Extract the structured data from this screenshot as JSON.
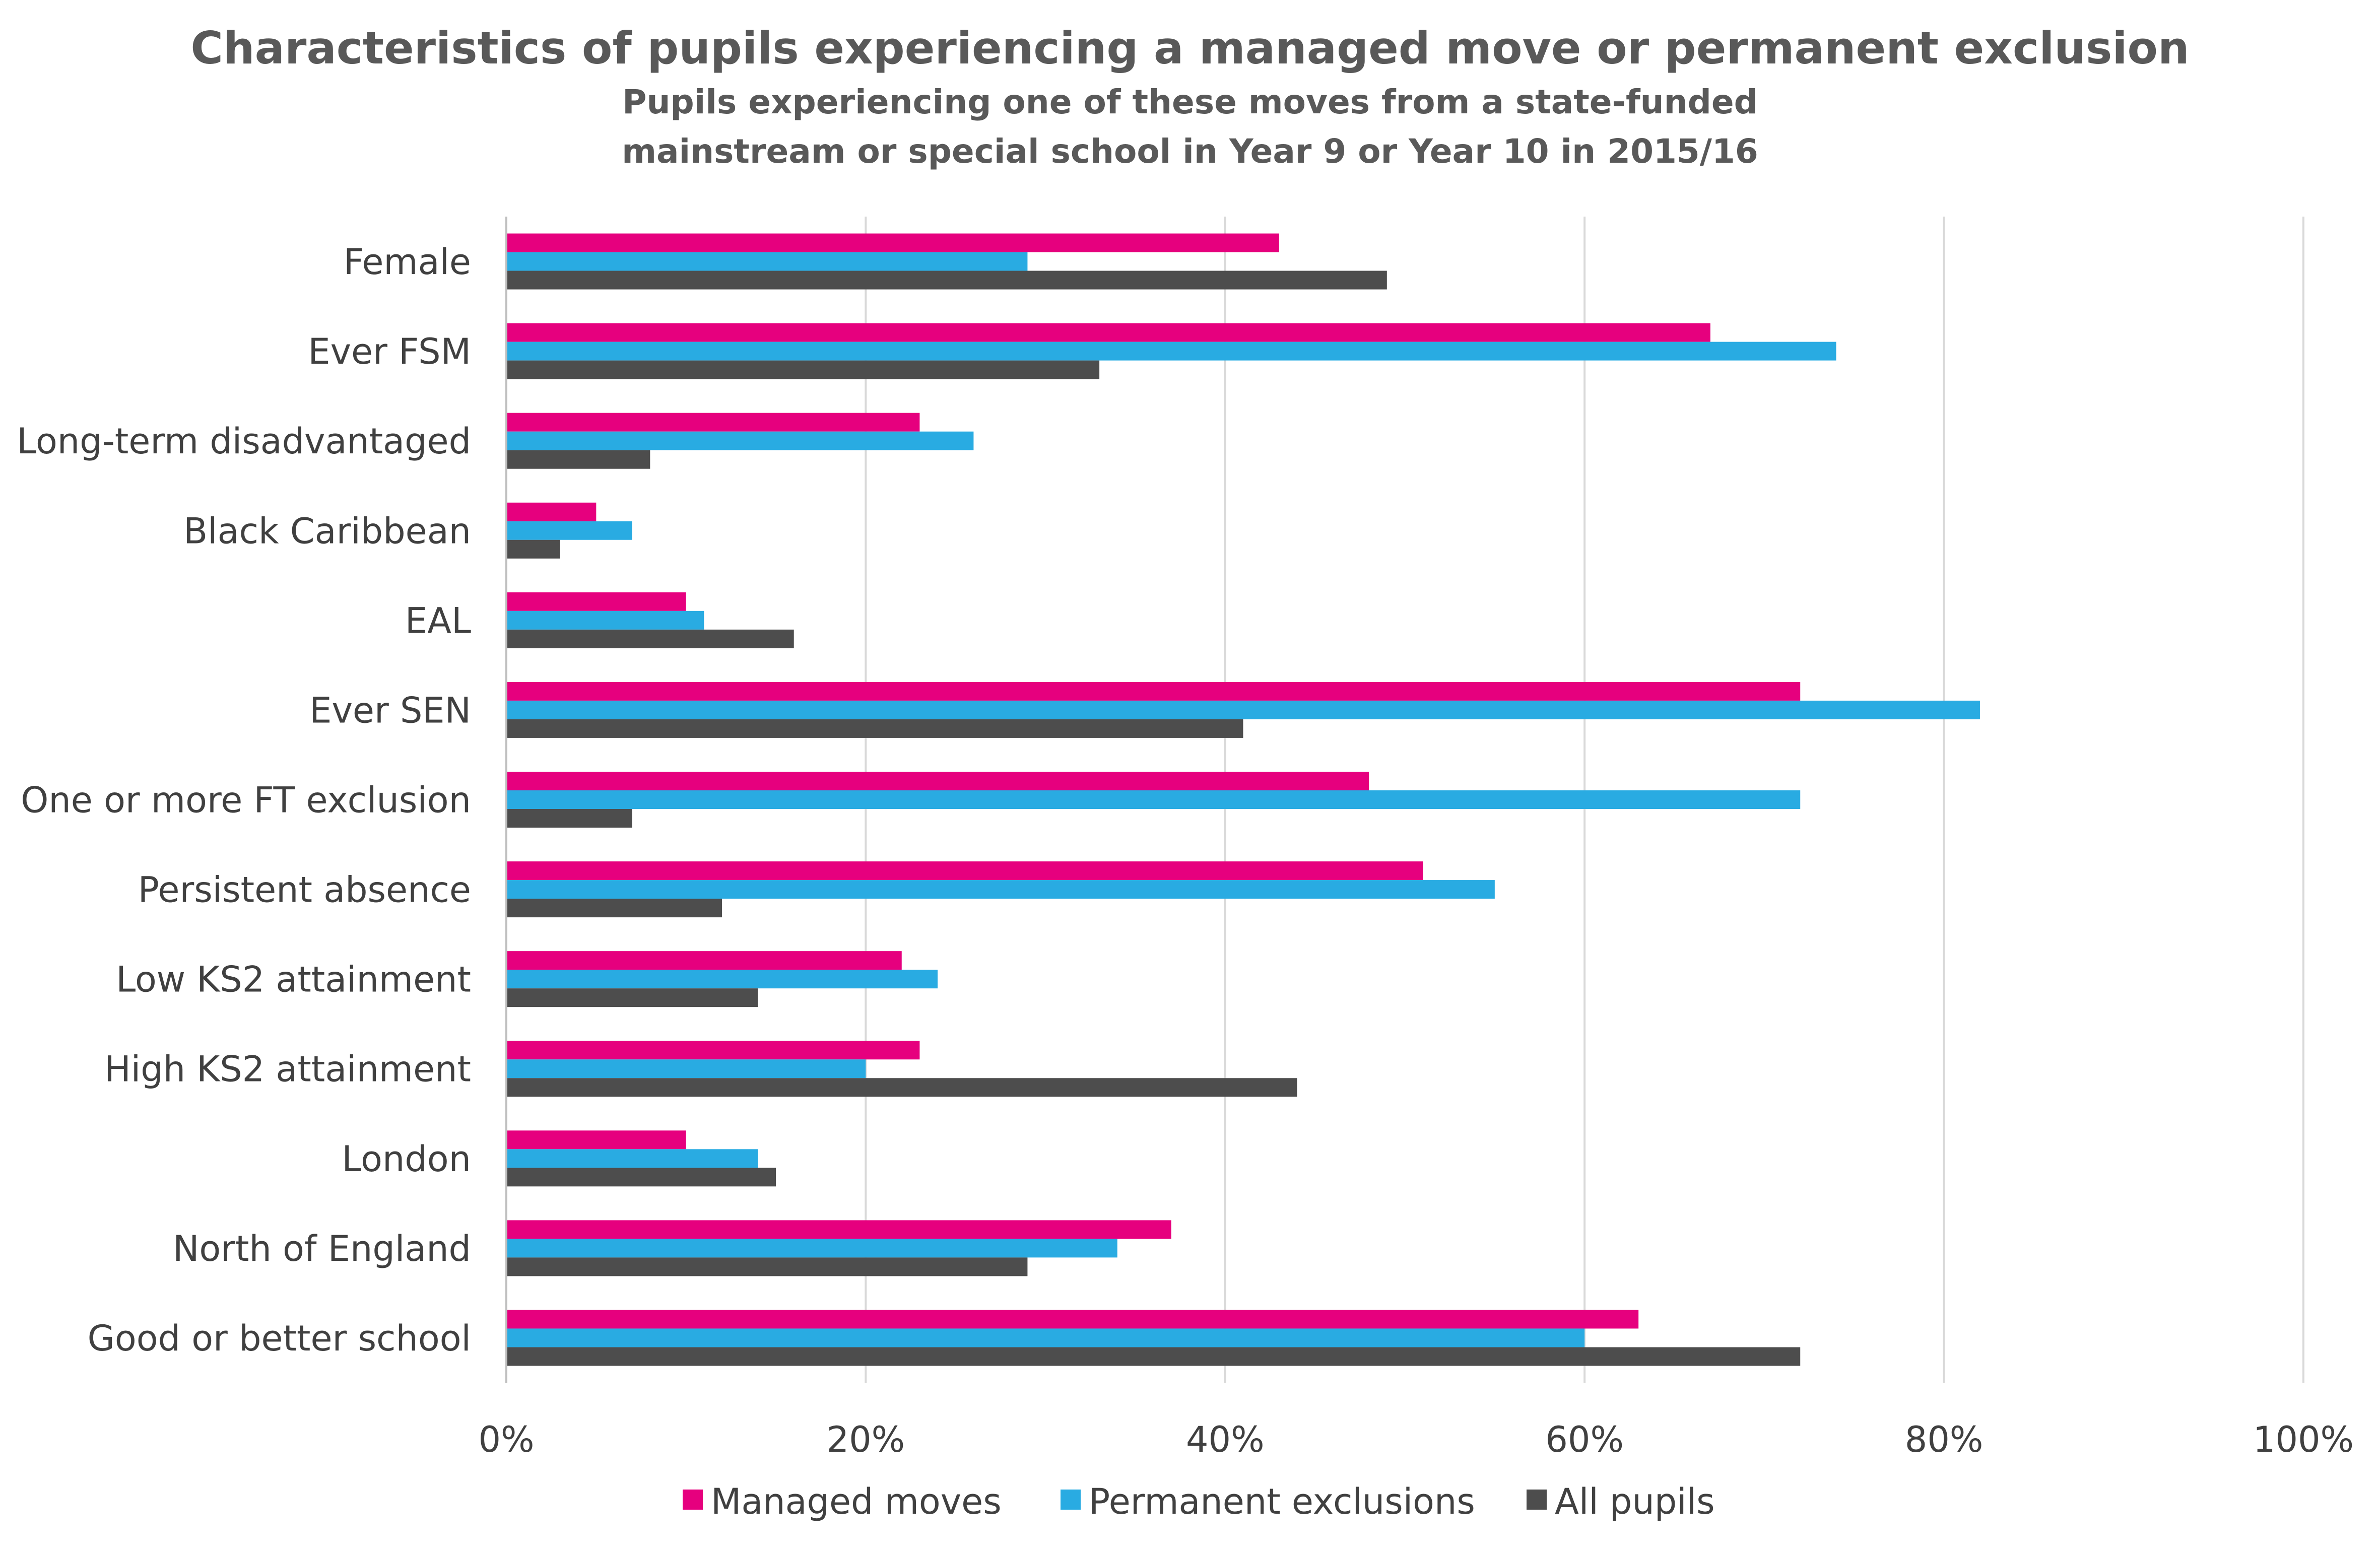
{
  "chart_data": {
    "type": "bar",
    "orientation": "horizontal",
    "title": "Characteristics of pupils experiencing a managed move or permanent exclusion",
    "subtitle_lines": [
      "Pupils experiencing one of these moves from a state-funded",
      "mainstream or special school in Year 9 or Year 10 in 2015/16"
    ],
    "categories": [
      "Female",
      "Ever FSM",
      "Long-term disadvantaged",
      "Black Caribbean",
      "EAL",
      "Ever SEN",
      "One or more FT exclusion",
      "Persistent absence",
      "Low KS2 attainment",
      "High KS2 attainment",
      "London",
      "North of England",
      "Good or better school"
    ],
    "series": [
      {
        "name": "Managed moves",
        "color": "#e6007e",
        "values": [
          43,
          67,
          23,
          5,
          10,
          72,
          48,
          51,
          22,
          23,
          10,
          37,
          63
        ]
      },
      {
        "name": "Permanent exclusions",
        "color": "#29abe2",
        "values": [
          29,
          74,
          26,
          7,
          11,
          82,
          72,
          55,
          24,
          20,
          14,
          34,
          60
        ]
      },
      {
        "name": "All pupils",
        "color": "#4d4d4d",
        "values": [
          49,
          33,
          8,
          3,
          16,
          41,
          7,
          12,
          14,
          44,
          15,
          29,
          72
        ]
      }
    ],
    "xlim": [
      0,
      100
    ],
    "x_ticks": [
      "0%",
      "20%",
      "40%",
      "60%",
      "80%",
      "100%"
    ],
    "grid": "vertical",
    "legend_position": "bottom"
  }
}
